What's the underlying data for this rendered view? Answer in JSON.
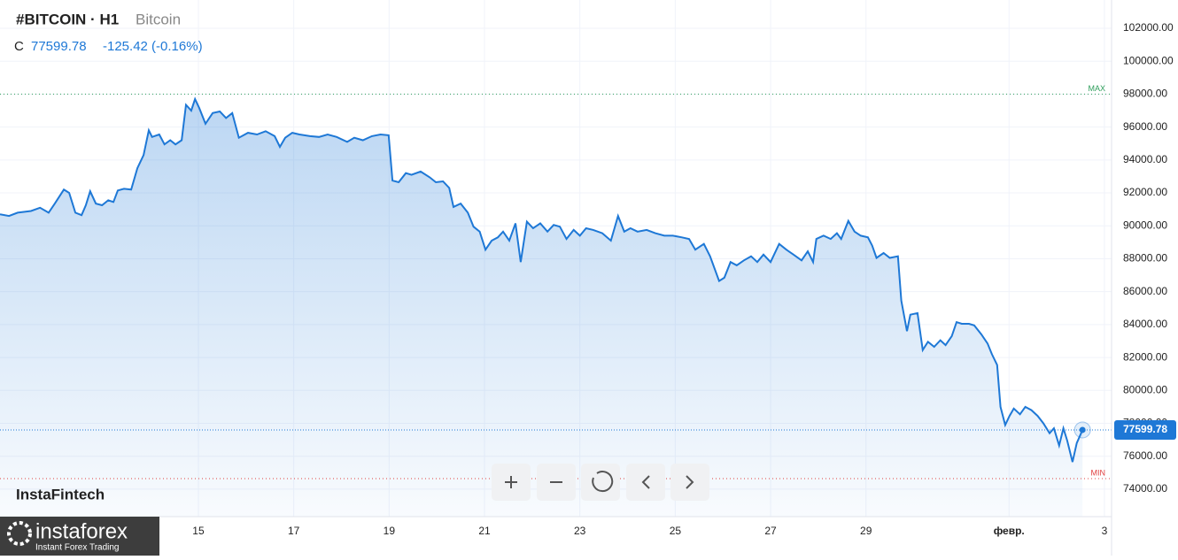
{
  "chart_data": {
    "type": "line",
    "title": "#BITCOIN · H1",
    "subtitle": "Bitcoin",
    "ohlc_label": "C",
    "close": 77599.78,
    "change": "-125.42 (-0.16%)",
    "watermark": "InstaFintech",
    "color": "#1e78d6",
    "x": [
      10.84,
      11.03,
      11.21,
      11.49,
      11.68,
      11.86,
      11.99,
      12.18,
      12.29,
      12.42,
      12.55,
      12.64,
      12.73,
      12.85,
      12.98,
      13.11,
      13.22,
      13.31,
      13.44,
      13.59,
      13.72,
      13.85,
      13.96,
      14.03,
      14.18,
      14.29,
      14.41,
      14.52,
      14.65,
      14.74,
      14.85,
      14.93,
      15.02,
      15.15,
      15.3,
      15.45,
      15.58,
      15.71,
      15.85,
      16.04,
      16.23,
      16.41,
      16.6,
      16.71,
      16.82,
      16.97,
      17.12,
      17.34,
      17.53,
      17.71,
      17.9,
      18.12,
      18.27,
      18.45,
      18.64,
      18.82,
      18.99,
      19.07,
      19.2,
      19.35,
      19.47,
      19.66,
      19.85,
      19.98,
      20.13,
      20.26,
      20.35,
      20.5,
      20.65,
      20.77,
      20.9,
      21.02,
      21.15,
      21.28,
      21.39,
      21.52,
      21.65,
      21.76,
      21.89,
      22.02,
      22.17,
      22.32,
      22.45,
      22.58,
      22.72,
      22.87,
      23.0,
      23.13,
      23.28,
      23.47,
      23.65,
      23.8,
      23.93,
      24.06,
      24.21,
      24.4,
      24.58,
      24.77,
      24.95,
      25.14,
      25.29,
      25.42,
      25.6,
      25.73,
      25.92,
      26.03,
      26.16,
      26.29,
      26.44,
      26.59,
      26.72,
      26.85,
      27.0,
      27.18,
      27.33,
      27.48,
      27.65,
      27.78,
      27.89,
      27.96,
      28.11,
      28.26,
      28.39,
      28.48,
      28.63,
      28.76,
      28.89,
      29.04,
      29.13,
      29.22,
      29.37,
      29.5,
      29.67,
      29.74,
      29.86,
      29.93,
      30.08,
      30.19,
      30.3,
      30.43,
      30.56,
      30.67,
      30.8,
      30.9,
      31.01,
      31.16,
      31.27,
      31.42,
      31.55,
      31.64,
      31.75,
      31.82,
      31.92,
      32.01,
      32.1,
      32.23,
      32.34,
      32.47,
      32.6,
      32.72,
      32.85,
      32.94,
      33.05,
      33.14,
      33.22,
      33.33,
      33.42,
      33.54
    ],
    "values": [
      90700,
      90600,
      90800,
      90900,
      91100,
      90800,
      91350,
      92200,
      92000,
      90800,
      90650,
      91250,
      92100,
      91350,
      91250,
      91550,
      91450,
      92150,
      92250,
      92200,
      93500,
      94300,
      95800,
      95400,
      95550,
      94950,
      95200,
      94950,
      95200,
      97350,
      97000,
      97700,
      97150,
      96200,
      96850,
      96950,
      96550,
      96850,
      95350,
      95650,
      95550,
      95750,
      95450,
      94800,
      95350,
      95650,
      95550,
      95450,
      95400,
      95550,
      95400,
      95100,
      95350,
      95200,
      95450,
      95550,
      95500,
      92750,
      92650,
      93200,
      93100,
      93300,
      92950,
      92650,
      92700,
      92300,
      91150,
      91350,
      90800,
      89950,
      89650,
      88550,
      89100,
      89300,
      89650,
      89100,
      90150,
      87800,
      90250,
      89850,
      90150,
      89650,
      90050,
      89950,
      89200,
      89750,
      89400,
      89850,
      89750,
      89550,
      89100,
      90600,
      89650,
      89850,
      89650,
      89750,
      89550,
      89400,
      89400,
      89300,
      89200,
      88550,
      88900,
      88150,
      86650,
      86850,
      87800,
      87600,
      87900,
      88150,
      87800,
      88250,
      87800,
      88900,
      88550,
      88250,
      87900,
      88450,
      87800,
      89200,
      89400,
      89200,
      89550,
      89200,
      90300,
      89650,
      89400,
      89300,
      88800,
      88050,
      88350,
      88050,
      88150,
      85450,
      83600,
      84600,
      84700,
      82450,
      82950,
      82650,
      83050,
      82750,
      83300,
      84150,
      84050,
      84050,
      83950,
      83400,
      82850,
      82200,
      81550,
      79000,
      77900,
      78450,
      78900,
      78550,
      79000,
      78800,
      78450,
      78000,
      77400,
      77700,
      76650,
      77700,
      76950,
      75650,
      76800,
      77599.78
    ],
    "xlim": [
      10.84,
      34.15
    ],
    "xticks": [
      15,
      17,
      19,
      21,
      23,
      25,
      27,
      29,
      {
        "value": 32,
        "label": "февр."
      },
      {
        "value": 34,
        "label": "3"
      }
    ],
    "ylim": [
      72330,
      103720
    ],
    "yticks": [
      {
        "value": 74000,
        "label": "74000.00"
      },
      {
        "value": 76000,
        "label": "76000.00"
      },
      {
        "value": 78000,
        "label": "78000.00"
      },
      {
        "value": 80000,
        "label": "80000.00"
      },
      {
        "value": 82000,
        "label": "82000.00"
      },
      {
        "value": 84000,
        "label": "84000.00"
      },
      {
        "value": 86000,
        "label": "86000.00"
      },
      {
        "value": 88000,
        "label": "88000.00"
      },
      {
        "value": 90000,
        "label": "90000.00"
      },
      {
        "value": 92000,
        "label": "92000.00"
      },
      {
        "value": 94000,
        "label": "94000.00"
      },
      {
        "value": 96000,
        "label": "96000.00"
      },
      {
        "value": 98000,
        "label": "98000.00"
      },
      {
        "value": 100000,
        "label": "100000.00"
      },
      {
        "value": 102000,
        "label": "102000.00"
      }
    ],
    "max_line": {
      "value": 98000,
      "label": "MAX"
    },
    "min_line": {
      "value": 74640,
      "label": "MIN"
    },
    "grid": true
  },
  "logo": {
    "name": "instaforex",
    "tagline": "Instant Forex Trading"
  }
}
